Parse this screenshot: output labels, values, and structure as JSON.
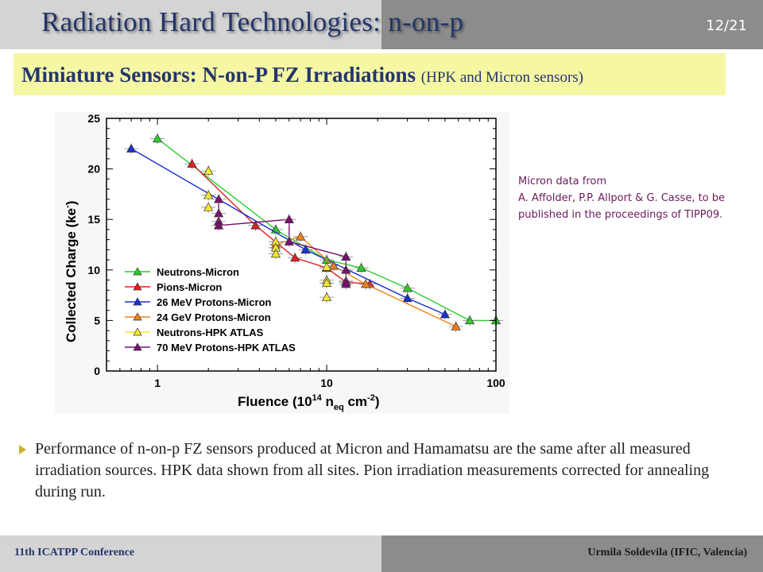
{
  "slide": {
    "title": "Radiation Hard Technologies: n-on-p",
    "page_number": "12/21",
    "subtitle": "Miniature Sensors: N-on-P FZ Irradiations",
    "subtitle_small": "(HPK and Micron sensors)"
  },
  "note": {
    "line1": "Micron data from",
    "line2": "A. Affolder, P.P. Allport & G. Casse, to be published in the proceedings of TIPP09."
  },
  "bullet": {
    "text": "Performance of n-on-p FZ sensors produced at Micron and Hamamatsu are the same after all measured irradiation sources. HPK data shown from all sites. Pion irradiation measurements corrected for annealing during run."
  },
  "footer": {
    "conference": "11th ICATPP Conference",
    "author": "Urmila Soldevila (IFIC, Valencia)"
  },
  "colors": {
    "title": "#24356b",
    "subtitle_bg": "#f5f7a3",
    "header_light": "#d4d4d4",
    "header_dark": "#8c8c8c",
    "note_text": "#6b1a5c"
  },
  "chart_data": {
    "type": "scatter",
    "xscale": "log",
    "xlim": [
      0.5,
      100
    ],
    "ylim": [
      0,
      25
    ],
    "xticks": [
      1,
      10,
      100
    ],
    "yticks": [
      0,
      5,
      10,
      15,
      20,
      25
    ],
    "xlabel": {
      "pre": "Fluence (10",
      "sup": "14",
      "mid": " n",
      "sub": "eq",
      "post": " cm",
      "sup2": "-2",
      "end": ")"
    },
    "ylabel": {
      "pre": "Collected Charge (ke",
      "sup": "-",
      "end": ")"
    },
    "legend_position": "bottom-left",
    "series": [
      {
        "name": "Neutrons-Micron",
        "color": "#2ecc2e",
        "connected": true,
        "x": [
          1,
          5,
          10,
          16,
          30,
          70,
          100
        ],
        "y": [
          23,
          14,
          11,
          10.2,
          8.2,
          5,
          5
        ]
      },
      {
        "name": "Pions-Micron",
        "color": "#e02020",
        "connected": true,
        "x": [
          1.6,
          3.8,
          6.5,
          10,
          13,
          18
        ],
        "y": [
          20.5,
          14.4,
          11.2,
          10.2,
          8.8,
          8.6
        ]
      },
      {
        "name": "26 MeV Protons-Micron",
        "color": "#1a2fd0",
        "connected": true,
        "x": [
          0.7,
          7.5,
          30,
          50
        ],
        "y": [
          22,
          12,
          7.2,
          5.6
        ]
      },
      {
        "name": "24 GeV Protons-Micron",
        "color": "#f07f1c",
        "connected": true,
        "x": [
          5,
          7,
          11,
          17,
          58
        ],
        "y": [
          12.5,
          13.3,
          10.4,
          8.6,
          4.4
        ]
      },
      {
        "name": "Neutrons-HPK ATLAS",
        "color": "#f5e633",
        "connected": false,
        "x": [
          2,
          2,
          2,
          5,
          5,
          5,
          10,
          10,
          10,
          10
        ],
        "y": [
          19.8,
          17.4,
          16.2,
          12.8,
          12.2,
          11.6,
          10.3,
          9,
          8.7,
          7.3
        ]
      },
      {
        "name": "70 MeV Protons-HPK ATLAS",
        "color": "#7a1070",
        "connected": true,
        "x": [
          2.3,
          2.3,
          2.3,
          2.3,
          6,
          6,
          13,
          13,
          13,
          13
        ],
        "y": [
          17,
          15.6,
          14.8,
          14.4,
          15,
          12.8,
          11.3,
          10,
          8.9,
          8.6
        ]
      }
    ]
  }
}
